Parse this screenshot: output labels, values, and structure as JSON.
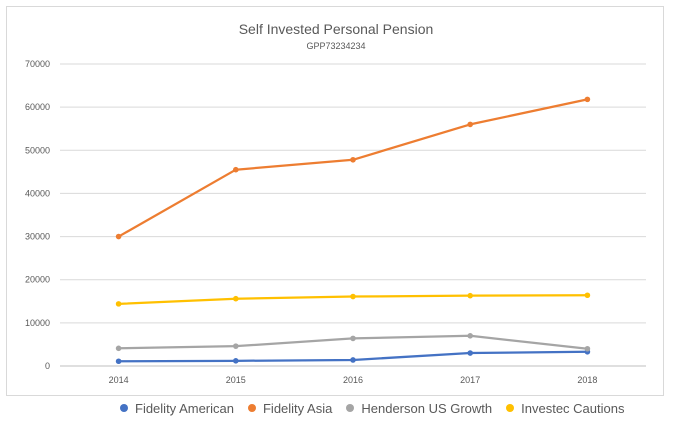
{
  "chart_data": {
    "type": "line",
    "title": "Self Invested Personal Pension",
    "subtitle": "GPP73234234",
    "x": [
      "2014",
      "2015",
      "2016",
      "2017",
      "2018"
    ],
    "ylim": [
      0,
      70000
    ],
    "yticks": [
      "0",
      "10000",
      "20000",
      "30000",
      "40000",
      "50000",
      "60000",
      "70000"
    ],
    "grid": true,
    "legend_position": "bottom",
    "series": [
      {
        "name": "Fidelity American",
        "color": "#4472c4",
        "values": [
          1100,
          1200,
          1400,
          3000,
          3300
        ]
      },
      {
        "name": "Fidelity Asia",
        "color": "#ed7d31",
        "values": [
          30000,
          45500,
          47800,
          56000,
          61800
        ]
      },
      {
        "name": "Henderson US Growth",
        "color": "#a5a5a5",
        "values": [
          4100,
          4600,
          6400,
          7000,
          4000
        ]
      },
      {
        "name": "Investec Cautions",
        "color": "#ffc000",
        "values": [
          14400,
          15600,
          16100,
          16300,
          16400
        ]
      }
    ]
  }
}
